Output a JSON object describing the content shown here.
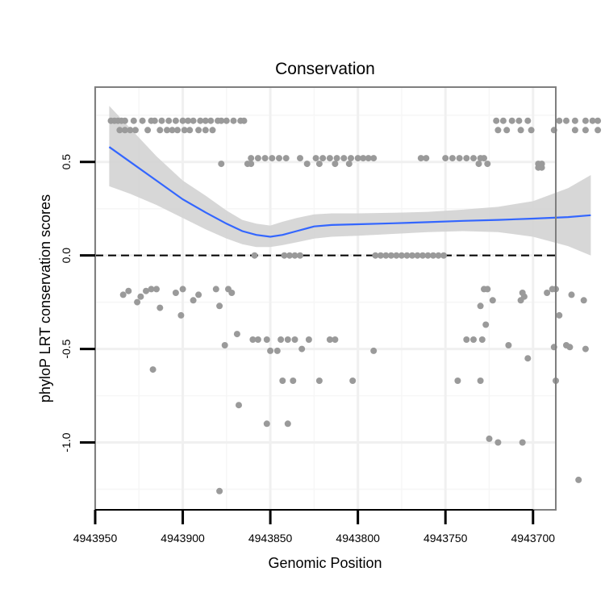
{
  "chart_data": {
    "type": "scatter",
    "title": "Conservation",
    "xlabel": "Genomic Position",
    "ylabel": "phyloP LRT conservation scores",
    "x_reversed": true,
    "xlim": [
      4943950,
      4943687
    ],
    "ylim": [
      -1.36,
      0.9
    ],
    "x_ticks": [
      4943950,
      4943900,
      4943850,
      4943800,
      4943750,
      4943700
    ],
    "x_tick_labels": [
      "4943950",
      "4943900",
      "4943850",
      "4943800",
      "4943750",
      "4943700"
    ],
    "y_ticks": [
      0.5,
      0.0,
      -0.5,
      -1.0
    ],
    "y_tick_labels": [
      "0.5",
      "0.0",
      "-0.5",
      "-1.0"
    ],
    "reference_line": {
      "y": 0.0,
      "style": "dashed"
    },
    "points_color": "#9a9a9a",
    "smooth_color": "#3366ff",
    "ribbon_color": "#d3d3d3",
    "points": [
      [
        4943941,
        0.72
      ],
      [
        4943939,
        0.72
      ],
      [
        4943937,
        0.72
      ],
      [
        4943935,
        0.72
      ],
      [
        4943933,
        0.72
      ],
      [
        4943928,
        0.72
      ],
      [
        4943923,
        0.72
      ],
      [
        4943918,
        0.72
      ],
      [
        4943916,
        0.72
      ],
      [
        4943912,
        0.72
      ],
      [
        4943908,
        0.72
      ],
      [
        4943904,
        0.72
      ],
      [
        4943900,
        0.72
      ],
      [
        4943897,
        0.72
      ],
      [
        4943894,
        0.72
      ],
      [
        4943890,
        0.72
      ],
      [
        4943887,
        0.72
      ],
      [
        4943884,
        0.72
      ],
      [
        4943880,
        0.72
      ],
      [
        4943878,
        0.72
      ],
      [
        4943875,
        0.72
      ],
      [
        4943871,
        0.72
      ],
      [
        4943867,
        0.72
      ],
      [
        4943865,
        0.72
      ],
      [
        4943936,
        0.67
      ],
      [
        4943933,
        0.67
      ],
      [
        4943930,
        0.67
      ],
      [
        4943927,
        0.67
      ],
      [
        4943920,
        0.67
      ],
      [
        4943913,
        0.67
      ],
      [
        4943909,
        0.67
      ],
      [
        4943906,
        0.67
      ],
      [
        4943903,
        0.67
      ],
      [
        4943899,
        0.67
      ],
      [
        4943896,
        0.67
      ],
      [
        4943891,
        0.67
      ],
      [
        4943887,
        0.67
      ],
      [
        4943883,
        0.67
      ],
      [
        4943878,
        0.49
      ],
      [
        4943863,
        0.49
      ],
      [
        4943861,
        0.52
      ],
      [
        4943857,
        0.52
      ],
      [
        4943853,
        0.52
      ],
      [
        4943849,
        0.52
      ],
      [
        4943845,
        0.52
      ],
      [
        4943841,
        0.52
      ],
      [
        4943833,
        0.52
      ],
      [
        4943824,
        0.52
      ],
      [
        4943820,
        0.52
      ],
      [
        4943816,
        0.52
      ],
      [
        4943812,
        0.52
      ],
      [
        4943808,
        0.52
      ],
      [
        4943804,
        0.52
      ],
      [
        4943800,
        0.52
      ],
      [
        4943797,
        0.52
      ],
      [
        4943794,
        0.52
      ],
      [
        4943791,
        0.52
      ],
      [
        4943861,
        0.49
      ],
      [
        4943829,
        0.49
      ],
      [
        4943822,
        0.49
      ],
      [
        4943813,
        0.49
      ],
      [
        4943805,
        0.49
      ],
      [
        4943764,
        0.52
      ],
      [
        4943761,
        0.52
      ],
      [
        4943750,
        0.52
      ],
      [
        4943746,
        0.52
      ],
      [
        4943742,
        0.52
      ],
      [
        4943738,
        0.52
      ],
      [
        4943734,
        0.52
      ],
      [
        4943730,
        0.52
      ],
      [
        4943728,
        0.52
      ],
      [
        4943731,
        0.49
      ],
      [
        4943726,
        0.49
      ],
      [
        4943697,
        0.49
      ],
      [
        4943695,
        0.49
      ],
      [
        4943697,
        0.47
      ],
      [
        4943695,
        0.47
      ],
      [
        4943721,
        0.72
      ],
      [
        4943717,
        0.72
      ],
      [
        4943712,
        0.72
      ],
      [
        4943708,
        0.72
      ],
      [
        4943703,
        0.72
      ],
      [
        4943685,
        0.72
      ],
      [
        4943681,
        0.72
      ],
      [
        4943676,
        0.72
      ],
      [
        4943670,
        0.72
      ],
      [
        4943666,
        0.72
      ],
      [
        4943663,
        0.72
      ],
      [
        4943720,
        0.67
      ],
      [
        4943715,
        0.67
      ],
      [
        4943707,
        0.67
      ],
      [
        4943701,
        0.67
      ],
      [
        4943688,
        0.67
      ],
      [
        4943676,
        0.67
      ],
      [
        4943670,
        0.67
      ],
      [
        4943663,
        0.67
      ],
      [
        4943859,
        0.0
      ],
      [
        4943842,
        0.0
      ],
      [
        4943839,
        0.0
      ],
      [
        4943836,
        0.0
      ],
      [
        4943833,
        0.0
      ],
      [
        4943790,
        0.0
      ],
      [
        4943787,
        0.0
      ],
      [
        4943784,
        0.0
      ],
      [
        4943781,
        0.0
      ],
      [
        4943778,
        0.0
      ],
      [
        4943775,
        0.0
      ],
      [
        4943772,
        0.0
      ],
      [
        4943769,
        0.0
      ],
      [
        4943766,
        0.0
      ],
      [
        4943763,
        0.0
      ],
      [
        4943760,
        0.0
      ],
      [
        4943757,
        0.0
      ],
      [
        4943754,
        0.0
      ],
      [
        4943751,
        0.0
      ],
      [
        4943934,
        -0.21
      ],
      [
        4943931,
        -0.19
      ],
      [
        4943926,
        -0.25
      ],
      [
        4943924,
        -0.22
      ],
      [
        4943921,
        -0.19
      ],
      [
        4943918,
        -0.18
      ],
      [
        4943915,
        -0.18
      ],
      [
        4943904,
        -0.2
      ],
      [
        4943900,
        -0.18
      ],
      [
        4943891,
        -0.21
      ],
      [
        4943881,
        -0.18
      ],
      [
        4943879,
        -0.27
      ],
      [
        4943874,
        -0.18
      ],
      [
        4943872,
        -0.2
      ],
      [
        4943913,
        -0.28
      ],
      [
        4943894,
        -0.24
      ],
      [
        4943901,
        -0.32
      ],
      [
        4943917,
        -0.61
      ],
      [
        4943876,
        -0.48
      ],
      [
        4943869,
        -0.42
      ],
      [
        4943868,
        -0.8
      ],
      [
        4943860,
        -0.45
      ],
      [
        4943857,
        -0.45
      ],
      [
        4943852,
        -0.45
      ],
      [
        4943850,
        -0.51
      ],
      [
        4943846,
        -0.51
      ],
      [
        4943844,
        -0.45
      ],
      [
        4943840,
        -0.45
      ],
      [
        4943836,
        -0.45
      ],
      [
        4943828,
        -0.45
      ],
      [
        4943816,
        -0.45
      ],
      [
        4943813,
        -0.45
      ],
      [
        4943843,
        -0.67
      ],
      [
        4943837,
        -0.67
      ],
      [
        4943822,
        -0.67
      ],
      [
        4943803,
        -0.67
      ],
      [
        4943852,
        -0.9
      ],
      [
        4943840,
        -0.9
      ],
      [
        4943791,
        -0.51
      ],
      [
        4943832,
        -0.5
      ],
      [
        4943879,
        -1.26
      ],
      [
        4943728,
        -0.18
      ],
      [
        4943726,
        -0.18
      ],
      [
        4943723,
        -0.24
      ],
      [
        4943730,
        -0.27
      ],
      [
        4943727,
        -0.37
      ],
      [
        4943738,
        -0.45
      ],
      [
        4943734,
        -0.45
      ],
      [
        4943729,
        -0.45
      ],
      [
        4943743,
        -0.67
      ],
      [
        4943730,
        -0.67
      ],
      [
        4943714,
        -0.48
      ],
      [
        4943703,
        -0.55
      ],
      [
        4943707,
        -0.24
      ],
      [
        4943706,
        -0.2
      ],
      [
        4943705,
        -0.22
      ],
      [
        4943692,
        -0.2
      ],
      [
        4943689,
        -0.18
      ],
      [
        4943687,
        -0.18
      ],
      [
        4943678,
        -0.21
      ],
      [
        4943671,
        -0.24
      ],
      [
        4943685,
        -0.32
      ],
      [
        4943688,
        -0.49
      ],
      [
        4943681,
        -0.48
      ],
      [
        4943679,
        -0.49
      ],
      [
        4943670,
        -0.5
      ],
      [
        4943687,
        -0.67
      ],
      [
        4943725,
        -0.98
      ],
      [
        4943720,
        -1.0
      ],
      [
        4943706,
        -1.0
      ],
      [
        4943674,
        -1.2
      ]
    ],
    "smooth_curve": [
      [
        4943942,
        0.58
      ],
      [
        4943930,
        0.5
      ],
      [
        4943915,
        0.4
      ],
      [
        4943900,
        0.3
      ],
      [
        4943887,
        0.23
      ],
      [
        4943875,
        0.17
      ],
      [
        4943866,
        0.13
      ],
      [
        4943858,
        0.11
      ],
      [
        4943850,
        0.1
      ],
      [
        4943843,
        0.11
      ],
      [
        4943835,
        0.13
      ],
      [
        4943825,
        0.155
      ],
      [
        4943815,
        0.163
      ],
      [
        4943800,
        0.167
      ],
      [
        4943780,
        0.172
      ],
      [
        4943760,
        0.178
      ],
      [
        4943740,
        0.185
      ],
      [
        4943720,
        0.19
      ],
      [
        4943700,
        0.197
      ],
      [
        4943680,
        0.205
      ],
      [
        4943667,
        0.215
      ]
    ],
    "ribbon_upper": [
      [
        4943942,
        0.8
      ],
      [
        4943930,
        0.68
      ],
      [
        4943915,
        0.53
      ],
      [
        4943900,
        0.4
      ],
      [
        4943887,
        0.32
      ],
      [
        4943875,
        0.24
      ],
      [
        4943866,
        0.19
      ],
      [
        4943858,
        0.17
      ],
      [
        4943850,
        0.16
      ],
      [
        4943843,
        0.18
      ],
      [
        4943835,
        0.2
      ],
      [
        4943825,
        0.22
      ],
      [
        4943815,
        0.225
      ],
      [
        4943800,
        0.225
      ],
      [
        4943780,
        0.228
      ],
      [
        4943760,
        0.233
      ],
      [
        4943740,
        0.245
      ],
      [
        4943720,
        0.26
      ],
      [
        4943700,
        0.29
      ],
      [
        4943680,
        0.36
      ],
      [
        4943667,
        0.43
      ]
    ],
    "ribbon_lower": [
      [
        4943942,
        0.37
      ],
      [
        4943930,
        0.33
      ],
      [
        4943915,
        0.27
      ],
      [
        4943900,
        0.2
      ],
      [
        4943887,
        0.14
      ],
      [
        4943875,
        0.09
      ],
      [
        4943866,
        0.06
      ],
      [
        4943858,
        0.045
      ],
      [
        4943850,
        0.045
      ],
      [
        4943843,
        0.055
      ],
      [
        4943835,
        0.07
      ],
      [
        4943825,
        0.09
      ],
      [
        4943815,
        0.1
      ],
      [
        4943800,
        0.105
      ],
      [
        4943780,
        0.115
      ],
      [
        4943760,
        0.125
      ],
      [
        4943740,
        0.13
      ],
      [
        4943720,
        0.125
      ],
      [
        4943700,
        0.1
      ],
      [
        4943680,
        0.05
      ],
      [
        4943667,
        0.0
      ]
    ]
  }
}
